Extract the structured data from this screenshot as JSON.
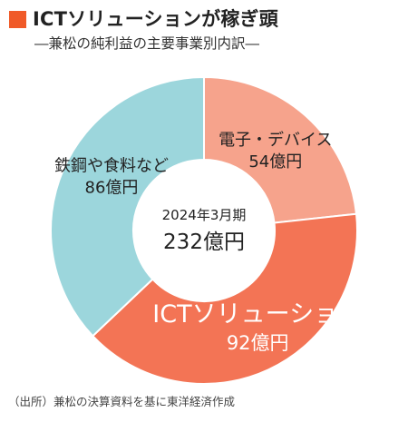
{
  "header": {
    "title": "ICTソリューションが稼ぎ頭",
    "subtitle": "―兼松の純利益の主要事業別内訳―",
    "accent_color": "#f05a28"
  },
  "chart_data": {
    "type": "pie",
    "variant": "donut",
    "center_label": {
      "period": "2024年3月期",
      "total": "232億円"
    },
    "unit": "億円",
    "slices": [
      {
        "name": "電子・デバイス",
        "value": 54,
        "value_label": "54億円",
        "color": "#f6a38c",
        "text_color": "#222222"
      },
      {
        "name": "ICTソリューション",
        "value": 92,
        "value_label": "92億円",
        "color": "#f37455",
        "text_color": "#ffffff"
      },
      {
        "name": "鉄鋼や食料など",
        "value": 86,
        "value_label": "86億円",
        "color": "#9cd6dc",
        "text_color": "#222222"
      }
    ]
  },
  "footer": {
    "source": "（出所）兼松の決算資料を基に東洋経済作成"
  }
}
